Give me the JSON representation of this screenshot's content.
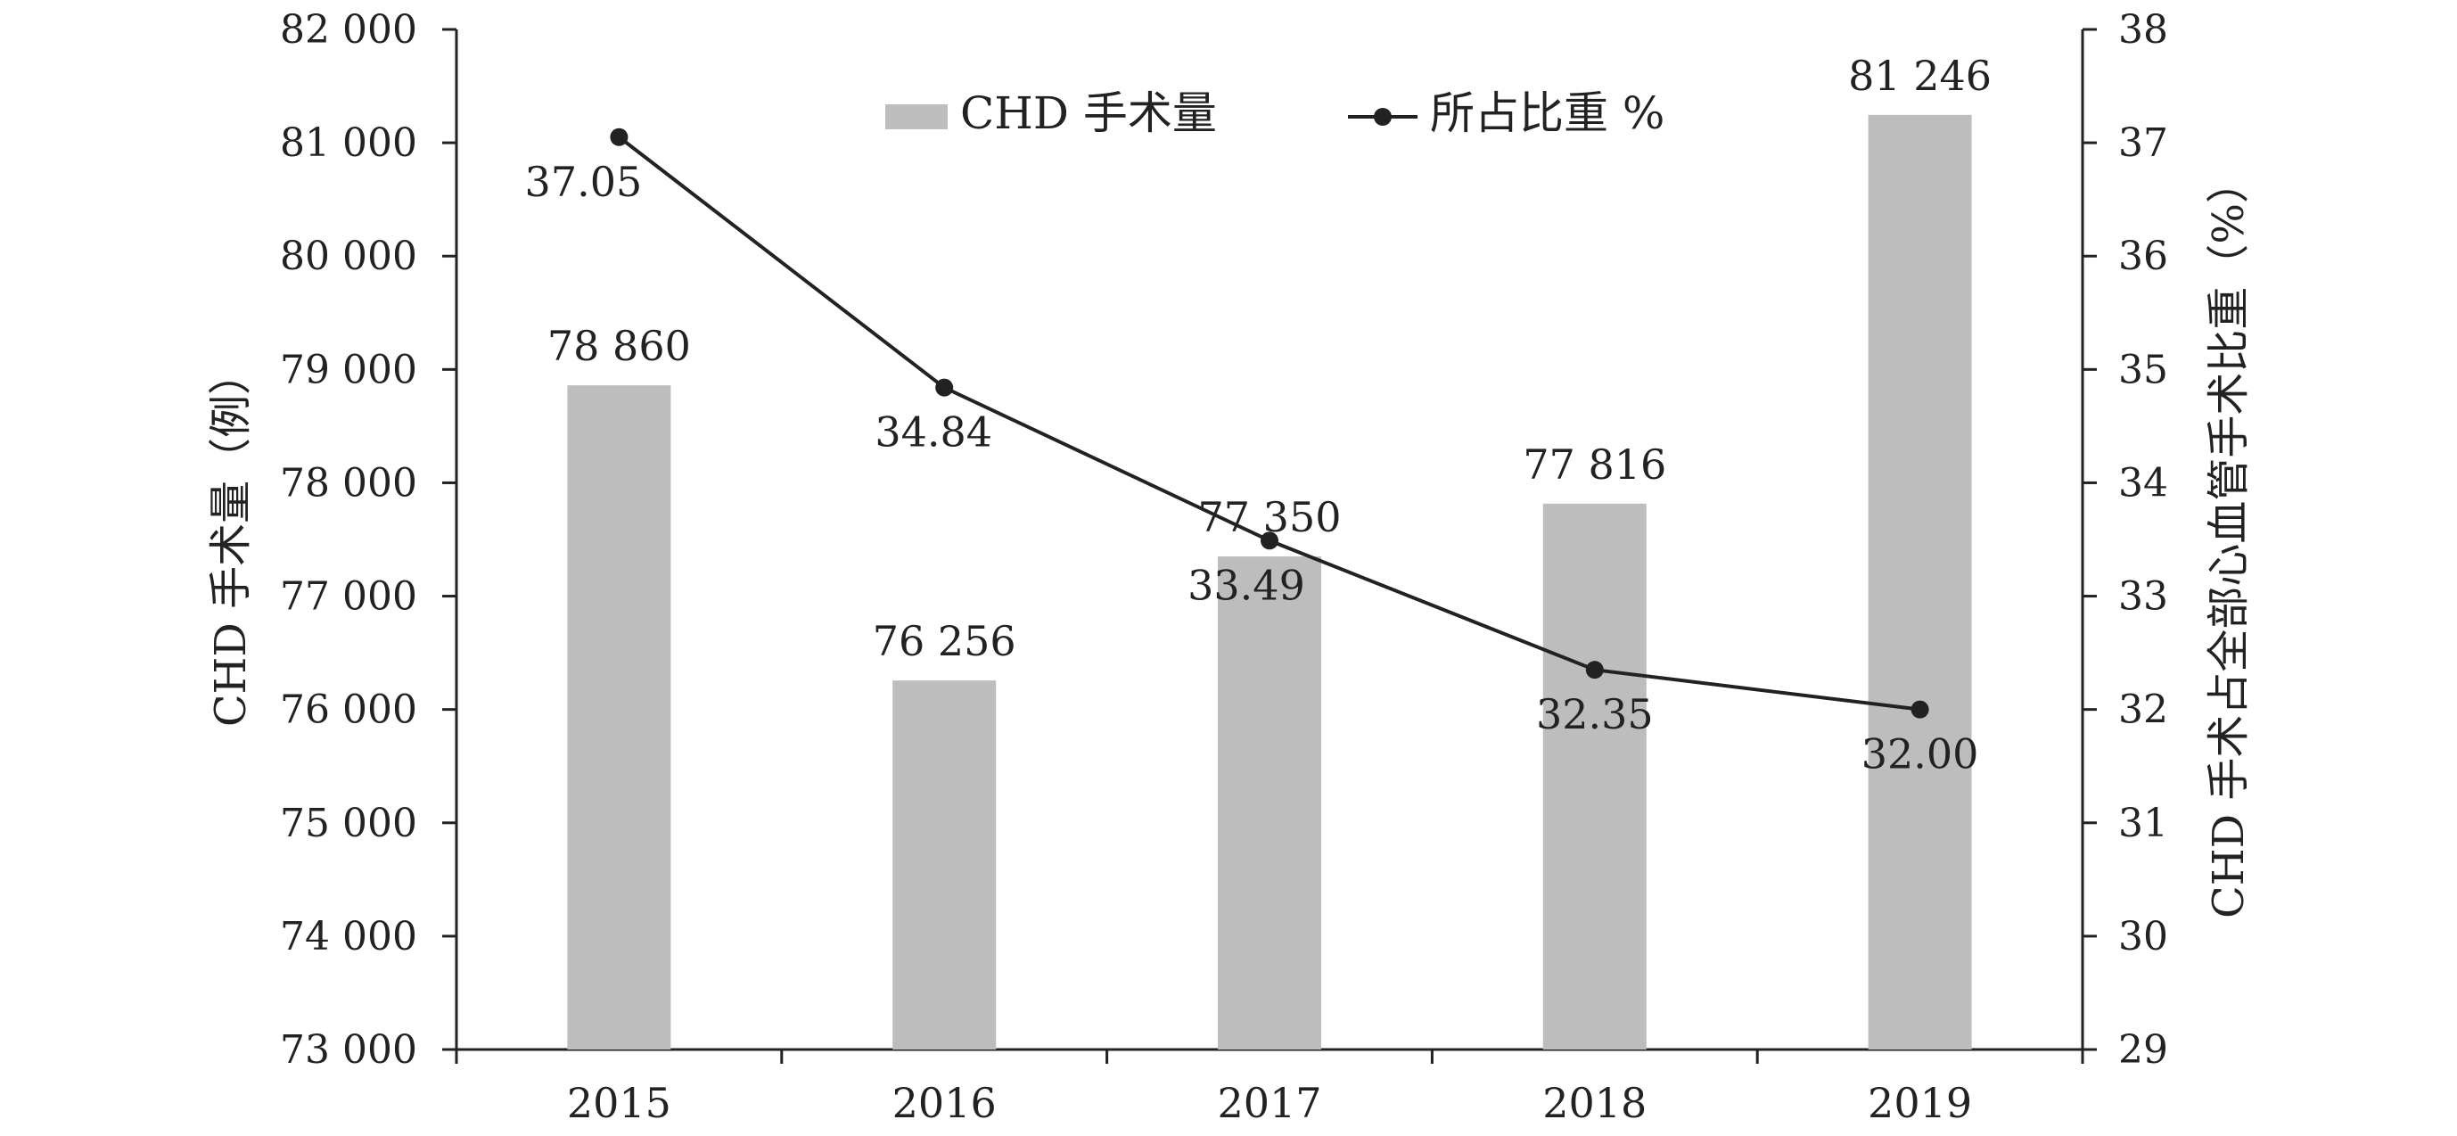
{
  "chart_data": {
    "type": "bar+line",
    "title": "",
    "categories": [
      "2015",
      "2016",
      "2017",
      "2018",
      "2019"
    ],
    "left_axis": {
      "label": "CHD 手术量（例）",
      "ylim": [
        73000,
        82000
      ],
      "ticks": [
        73000,
        74000,
        75000,
        76000,
        77000,
        78000,
        79000,
        80000,
        81000,
        82000
      ],
      "tick_labels": [
        "73 000",
        "74 000",
        "75 000",
        "76 000",
        "77 000",
        "78 000",
        "79 000",
        "80 000",
        "81 000",
        "82 000"
      ]
    },
    "right_axis": {
      "label": "CHD 手术占全部心血管手术比重（%）",
      "ylim": [
        29,
        38
      ],
      "ticks": [
        29,
        30,
        31,
        32,
        33,
        34,
        35,
        36,
        37,
        38
      ],
      "tick_labels": [
        "29",
        "30",
        "31",
        "32",
        "33",
        "34",
        "35",
        "36",
        "37",
        "38"
      ]
    },
    "series": [
      {
        "name": "CHD 手术量",
        "type": "bar",
        "axis": "left",
        "color": "#bdbdbd",
        "values": [
          78860,
          76256,
          77350,
          77816,
          81246
        ],
        "labels": [
          "78 860",
          "76 256",
          "77 350",
          "77 816",
          "81 246"
        ]
      },
      {
        "name": "所占比重 %",
        "type": "line",
        "axis": "right",
        "color": "#222222",
        "values": [
          37.05,
          34.84,
          33.49,
          32.35,
          32.0
        ],
        "labels": [
          "37.05",
          "34.84",
          "33.49",
          "32.35",
          "32.00"
        ]
      }
    ],
    "grid": false,
    "legend": "top-center"
  }
}
